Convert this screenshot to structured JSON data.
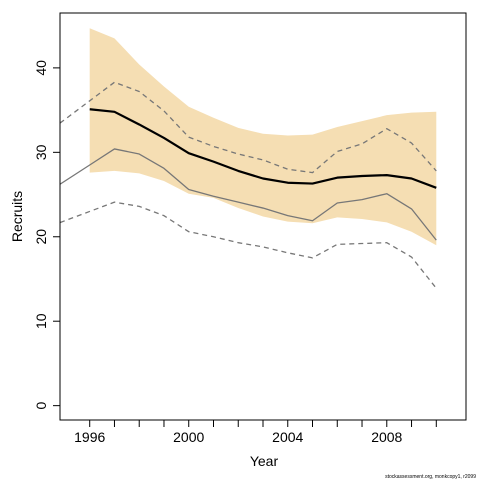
{
  "chart_data": {
    "type": "line",
    "title": "",
    "xlabel": "Year",
    "ylabel": "Recruits",
    "xlim": [
      1994.8,
      2011.2
    ],
    "ylim": [
      -1.7,
      46.5
    ],
    "grid": false,
    "legend": "none",
    "x_ticks": [
      1996,
      1997,
      1998,
      1999,
      2000,
      2001,
      2002,
      2003,
      2004,
      2005,
      2006,
      2007,
      2008,
      2009,
      2010
    ],
    "x_tick_labels": [
      {
        "value": 1996,
        "label": "1996"
      },
      {
        "value": 2000,
        "label": "2000"
      },
      {
        "value": 2004,
        "label": "2004"
      },
      {
        "value": 2008,
        "label": "2008"
      }
    ],
    "y_tick_labels": [
      {
        "value": 0,
        "label": "0"
      },
      {
        "value": 10,
        "label": "10"
      },
      {
        "value": 20,
        "label": "20"
      },
      {
        "value": 30,
        "label": "30"
      },
      {
        "value": 40,
        "label": "40"
      }
    ],
    "x": [
      1996,
      1997,
      1998,
      1999,
      2000,
      2001,
      2002,
      2003,
      2004,
      2005,
      2006,
      2007,
      2008,
      2009,
      2010
    ],
    "band": {
      "color": "#f5deb3",
      "upper": [
        44.7,
        43.5,
        40.4,
        37.8,
        35.4,
        34.1,
        32.9,
        32.2,
        32.0,
        32.1,
        33.0,
        33.7,
        34.4,
        34.7,
        34.8
      ],
      "lower": [
        27.6,
        27.8,
        27.5,
        26.6,
        25.1,
        24.6,
        23.4,
        22.4,
        21.8,
        21.6,
        22.3,
        22.1,
        21.7,
        20.6,
        19.0
      ]
    },
    "series": [
      {
        "style": "solid-bold",
        "color": "#000000",
        "values": [
          35.1,
          34.8,
          33.3,
          31.7,
          29.9,
          28.9,
          27.8,
          26.9,
          26.4,
          26.3,
          27.0,
          27.2,
          27.3,
          26.9,
          25.8
        ]
      },
      {
        "style": "solid-thin",
        "color": "#777777",
        "values": [
          28.5,
          30.4,
          29.8,
          28.1,
          25.6,
          24.8,
          24.1,
          23.4,
          22.5,
          21.9,
          24.0,
          24.4,
          25.1,
          23.3,
          19.6
        ]
      },
      {
        "style": "dashed-upper",
        "color": "#777777",
        "values": [
          36.1,
          38.3,
          37.2,
          34.9,
          31.8,
          30.7,
          29.8,
          29.1,
          28.0,
          27.6,
          30.1,
          31.0,
          32.8,
          31.1,
          27.8
        ]
      },
      {
        "style": "dashed-lower",
        "color": "#777777",
        "values": [
          23.0,
          24.1,
          23.6,
          22.5,
          20.6,
          20.0,
          19.3,
          18.8,
          18.1,
          17.5,
          19.1,
          19.2,
          19.3,
          17.6,
          13.9
        ]
      }
    ],
    "footnote": "stockassessment.org, monkcopy1, r2099"
  }
}
